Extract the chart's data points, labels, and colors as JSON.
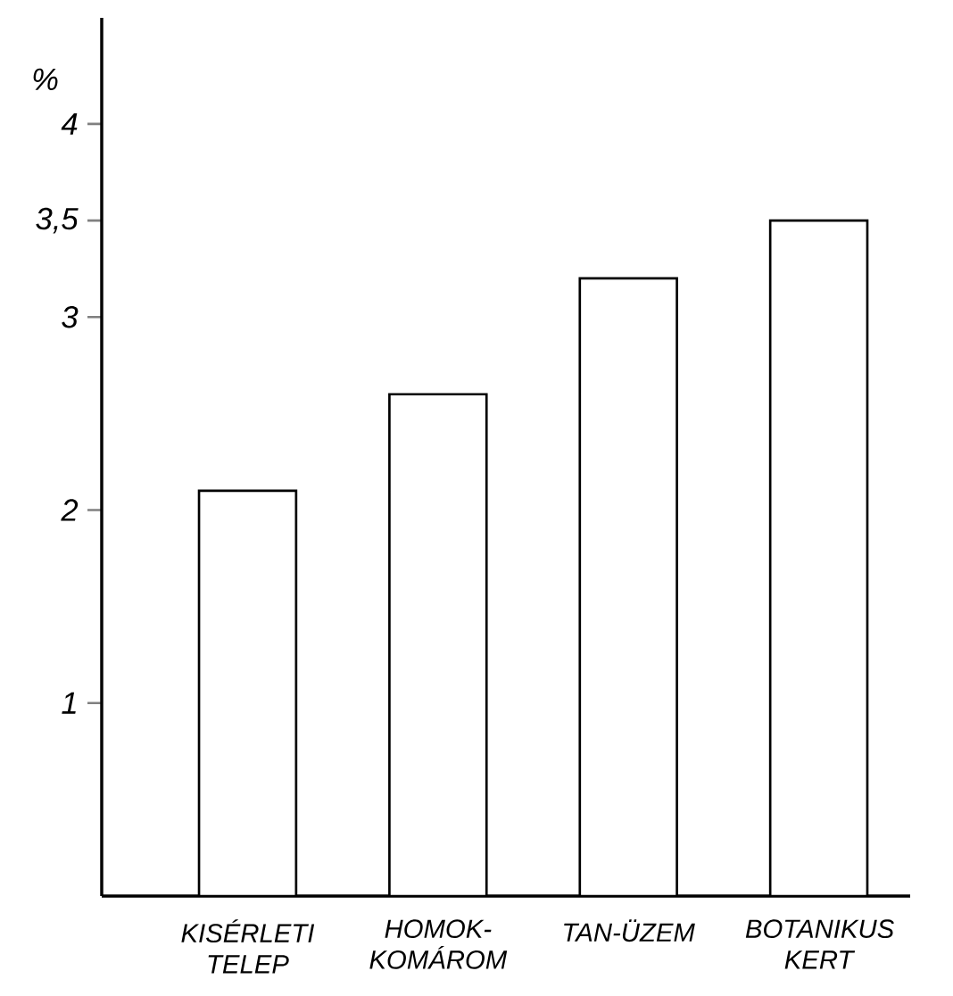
{
  "chart_data": {
    "type": "bar",
    "ylabel": "%",
    "categories": [
      "KISÉRLETI TELEP",
      "HOMOK-KOMÁROM",
      "TAN-ÜZEM",
      "BOTANIKUS KERT"
    ],
    "values": [
      2.1,
      2.6,
      3.2,
      3.5
    ],
    "color": "#ffffff",
    "ylim": [
      0,
      4.55
    ],
    "yticks": [
      1,
      2,
      3,
      {
        "value": 3.5,
        "label": "3,5"
      },
      4
    ],
    "grid": false
  }
}
